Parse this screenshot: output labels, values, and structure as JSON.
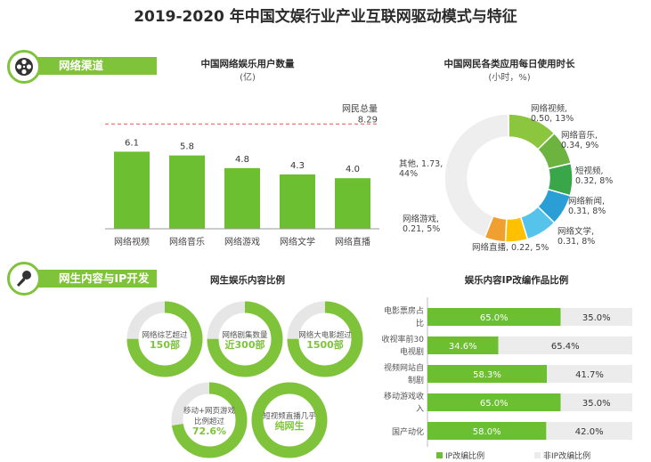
{
  "page_title": "2019-2020 年中国文娱行业产业互联网驱动模式与特征",
  "sections": {
    "channel": {
      "label": "网络渠道",
      "icon": "film-reel-icon"
    },
    "content": {
      "label": "网生内容与IP开发",
      "icon": "microphone-icon"
    }
  },
  "colors": {
    "accent": "#7fc33b",
    "bar": "#6cbf31",
    "grey": "#e6e6e6",
    "ref_line": "#e8554f"
  },
  "chart_data": [
    {
      "type": "bar",
      "title": "中国网络娱乐用户数量",
      "subtitle": "(亿)",
      "categories": [
        "网络视频",
        "网络音乐",
        "网络游戏",
        "网络文学",
        "网络直播"
      ],
      "values": [
        6.1,
        5.8,
        4.8,
        4.3,
        4.0
      ],
      "reference": {
        "label": "网民总量",
        "value": 8.29
      }
    },
    {
      "type": "pie",
      "title": "中国网民各类应用每日使用时长",
      "subtitle": "(小时，%)",
      "slices": [
        {
          "label": "网络视频",
          "hours": 0.5,
          "percent": 13,
          "color": "#8cc63f"
        },
        {
          "label": "网络音乐",
          "hours": 0.34,
          "percent": 9,
          "color": "#6db33f"
        },
        {
          "label": "短视频",
          "hours": 0.32,
          "percent": 8,
          "color": "#39a64a"
        },
        {
          "label": "网络新闻",
          "hours": 0.31,
          "percent": 8,
          "color": "#2a9fd6"
        },
        {
          "label": "网络文学",
          "hours": 0.31,
          "percent": 8,
          "color": "#56c4ea"
        },
        {
          "label": "网络直播",
          "hours": 0.22,
          "percent": 5,
          "color": "#ffc000"
        },
        {
          "label": "网络游戏",
          "hours": 0.21,
          "percent": 5,
          "color": "#f0a030"
        },
        {
          "label": "其他",
          "hours": 1.73,
          "percent": 44,
          "color": "#eeeeee"
        }
      ],
      "labels": {
        "video": [
          "网络视频,",
          "0.50, 13%"
        ],
        "music": [
          "网络音乐,",
          "0.34, 9%"
        ],
        "short": [
          "短视频,",
          "0.32, 8%"
        ],
        "news": [
          "网络新闻,",
          "0.31, 8%"
        ],
        "lit": [
          "网络文学,",
          "0.31, 8%"
        ],
        "live": "网络直播, 0.22, 5%",
        "game": [
          "网络游戏,",
          "0.21, 5%"
        ],
        "other": [
          "其他, 1.73,",
          "44%"
        ]
      }
    },
    {
      "type": "pie",
      "title": "网生娱乐内容比例",
      "rings": [
        {
          "lines": [
            "网络综艺超过",
            "150部"
          ],
          "fill": 0.75
        },
        {
          "lines": [
            "网络剧集数量",
            "近300部"
          ],
          "fill": 0.75
        },
        {
          "lines": [
            "网络大电影超过",
            "1500部"
          ],
          "fill": 0.75
        },
        {
          "lines": [
            "移动+网页游戏",
            "比例超过",
            "72.6%"
          ],
          "fill": 0.726
        },
        {
          "lines": [
            "短视频直播几乎",
            "纯网生"
          ],
          "fill": 1.0
        }
      ]
    },
    {
      "type": "bar",
      "title": "娱乐内容IP改编作品比例",
      "categories": [
        [
          "电影票房占",
          "比"
        ],
        [
          "收视率前30",
          "电视剧"
        ],
        [
          "视频网站自",
          "制剧"
        ],
        [
          "移动游戏收",
          "入"
        ],
        [
          "国产动化"
        ]
      ],
      "series": [
        {
          "name": "IP改编比例",
          "values": [
            65.0,
            34.6,
            58.3,
            65.0,
            58.0
          ]
        },
        {
          "name": "非IP改编比例",
          "values": [
            35.0,
            65.4,
            41.7,
            35.0,
            42.0
          ]
        }
      ],
      "value_labels": [
        [
          "65.0%",
          "35.0%"
        ],
        [
          "34.6%",
          "65.4%"
        ],
        [
          "58.3%",
          "41.7%"
        ],
        [
          "65.0%",
          "35.0%"
        ],
        [
          "58.0%",
          "42.0%"
        ]
      ]
    }
  ]
}
